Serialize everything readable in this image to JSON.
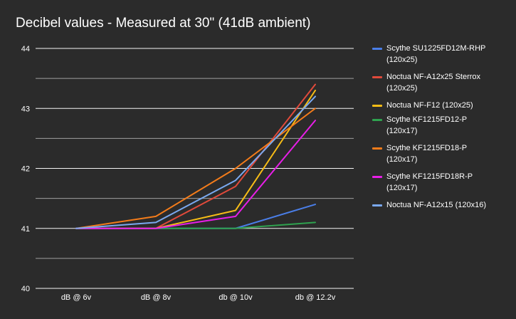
{
  "chart_data": {
    "type": "line",
    "title": "Decibel values - Measured at 30\" (41dB ambient)",
    "xlabel": "",
    "ylabel": "",
    "categories": [
      "dB @ 6v",
      "dB @ 8v",
      "db @ 10v",
      "db @ 12.2v"
    ],
    "ylim": [
      40,
      44
    ],
    "yticks": [
      "40",
      "41",
      "42",
      "43",
      "44"
    ],
    "grid": true,
    "legend_position": "right",
    "series": [
      {
        "name": "Scythe SU1225FD12M-RHP (120x25)",
        "line1": "Scythe SU1225FD12M-RHP",
        "line2": "(120x25)",
        "color": "#4a7ee8",
        "values": [
          41.0,
          41.0,
          41.0,
          41.4
        ]
      },
      {
        "name": "Noctua NF-A12x25 Sterrox (120x25)",
        "line1": "Noctua NF-A12x25 Sterrox",
        "line2": "(120x25)",
        "color": "#e14a3b",
        "values": [
          41.0,
          41.0,
          41.7,
          43.4
        ]
      },
      {
        "name": "Noctua NF-F12 (120x25)",
        "line1": "Noctua NF-F12 (120x25)",
        "line2": "",
        "color": "#f7bd16",
        "values": [
          41.0,
          41.0,
          41.3,
          43.3
        ]
      },
      {
        "name": "Scythe KF1215FD12-P (120x17)",
        "line1": "Scythe KF1215FD12-P",
        "line2": "(120x17)",
        "color": "#2fa24f",
        "values": [
          41.0,
          41.0,
          41.0,
          41.1
        ]
      },
      {
        "name": "Scythe KF1215FD18-P (120x17)",
        "line1": "Scythe KF1215FD18-P",
        "line2": "(120x17)",
        "color": "#f47c1a",
        "values": [
          41.0,
          41.2,
          42.0,
          43.0
        ]
      },
      {
        "name": "Scythe KF1215FD18R-P (120x17)",
        "line1": "Scythe KF1215FD18R-P",
        "line2": "(120x17)",
        "color": "#e81ee8",
        "values": [
          41.0,
          41.0,
          41.2,
          42.8
        ]
      },
      {
        "name": "Noctua NF-A12x15 (120x16)",
        "line1": "Noctua NF-A12x15 (120x16)",
        "line2": "",
        "color": "#7aa9f0",
        "values": [
          41.0,
          41.1,
          41.8,
          43.2
        ]
      }
    ]
  }
}
